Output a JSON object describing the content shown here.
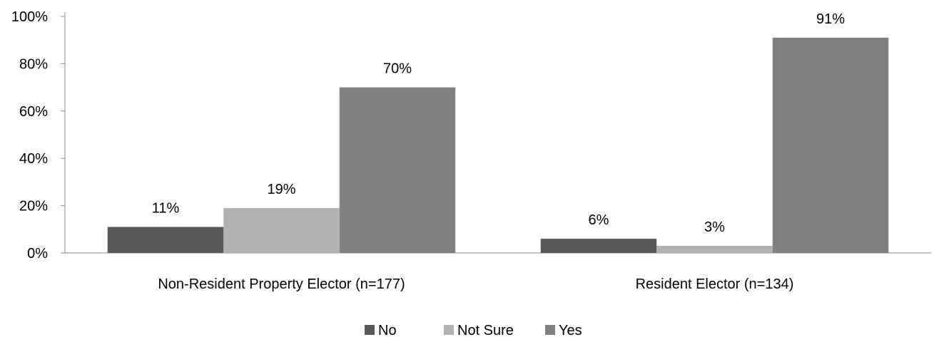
{
  "chart_data": {
    "type": "bar",
    "title": "",
    "xlabel": "",
    "ylabel": "",
    "categories": [
      "Non-Resident Property Elector (n=177)",
      "Resident Elector (n=134)"
    ],
    "series": [
      {
        "name": "No",
        "values": [
          11,
          6
        ],
        "labels": [
          "11%",
          "6%"
        ],
        "color": "#595959"
      },
      {
        "name": "Not Sure",
        "values": [
          19,
          3
        ],
        "labels": [
          "19%",
          "3%"
        ],
        "color": "#b2b2b2"
      },
      {
        "name": "Yes",
        "values": [
          70,
          91
        ],
        "labels": [
          "70%",
          "91%"
        ],
        "color": "#808080"
      }
    ],
    "ylim": [
      0,
      100
    ],
    "yticks": [
      0,
      20,
      40,
      60,
      80,
      100
    ],
    "ytick_labels": [
      "0%",
      "20%",
      "40%",
      "60%",
      "80%",
      "100%"
    ],
    "grid": false,
    "legend_position": "bottom"
  }
}
